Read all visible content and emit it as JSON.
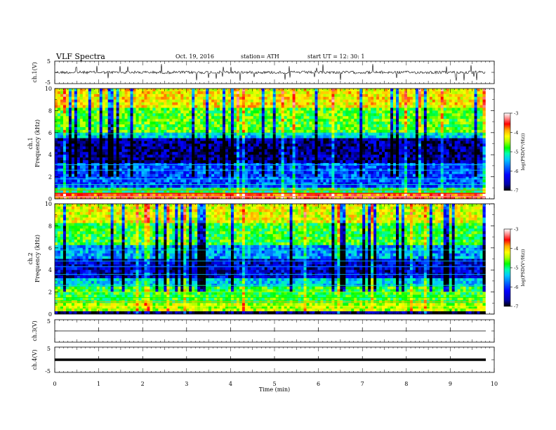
{
  "header": {
    "title": "VLF  Spectra",
    "date": "Oct. 19, 2016",
    "station": "station= ATH",
    "start": "start  UT  =    12: 30: 1"
  },
  "chart_data": [
    {
      "type": "line",
      "ylabel": "ch.1(V)",
      "ylim": [
        -5,
        5
      ],
      "yticks": [
        {
          "value": 5,
          "label": "5"
        },
        {
          "value": -5,
          "label": "-5"
        }
      ],
      "description": "noisy waveform centred near 0 V"
    },
    {
      "type": "heatmap",
      "ylabel_channel": "ch.1",
      "ylabel": "Frequency  (kHz)",
      "ylim": [
        0,
        10
      ],
      "yticks": [
        0,
        2,
        4,
        6,
        8,
        10
      ],
      "colorbar": {
        "label": "log(PSD(V²/Hz))",
        "range": [
          -7,
          -3
        ],
        "ticks": [
          -7,
          -6,
          -5,
          -4,
          -3
        ]
      },
      "dominant_features": "high log PSD above 6 kHz and below 1 kHz, low PSD band 2–6 kHz"
    },
    {
      "type": "heatmap",
      "ylabel_channel": "ch.2",
      "ylabel": "Frequency  (kHz)",
      "ylim": [
        0,
        10
      ],
      "yticks": [
        0,
        2,
        4,
        6,
        8,
        10
      ],
      "colorbar": {
        "label": "log(PSD(V²/Hz))",
        "range": [
          -7,
          -3
        ],
        "ticks": [
          -7,
          -6,
          -5,
          -4,
          -3
        ]
      },
      "dominant_features": "high log PSD above 6 kHz and 0–2.5 kHz, low PSD bands near 3–5 kHz"
    },
    {
      "type": "line",
      "ylabel": "ch.3(V)",
      "ylim": [
        -5,
        5
      ],
      "yticks": [
        {
          "value": 5,
          "label": "5"
        }
      ],
      "description": "flat line near 0 V"
    },
    {
      "type": "line",
      "ylabel": "ch.4(V)",
      "ylim": [
        -5,
        5
      ],
      "yticks": [
        {
          "value": 5,
          "label": "5"
        },
        {
          "value": -5,
          "label": "-5"
        }
      ],
      "description": "flat thick line near 0 V"
    }
  ],
  "xaxis": {
    "label": "Time  (min)",
    "range": [
      0,
      10
    ],
    "ticks": [
      "0",
      "1",
      "2",
      "3",
      "4",
      "5",
      "6",
      "7",
      "8",
      "9",
      "10"
    ],
    "data_end": 9.8
  },
  "colors": {
    "colormap": [
      "#000000",
      "#0000aa",
      "#0000ff",
      "#0064ff",
      "#00c8ff",
      "#00ffaa",
      "#00ff00",
      "#aaff00",
      "#ffff00",
      "#ffaa00",
      "#ff0000",
      "#ff8888",
      "#ffffff"
    ]
  }
}
